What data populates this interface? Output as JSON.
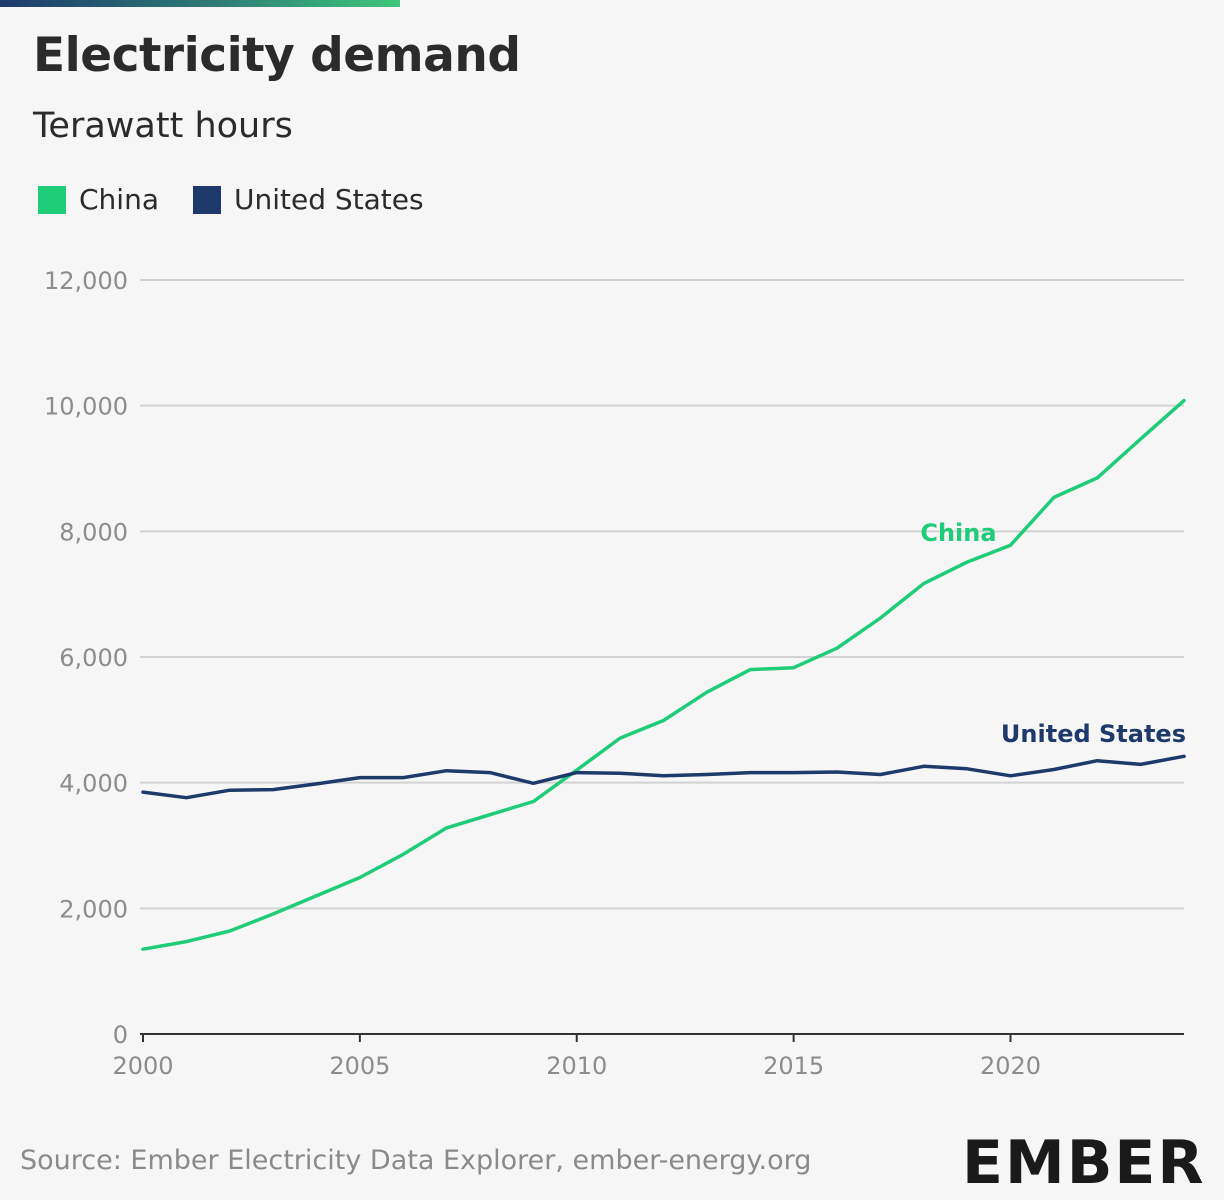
{
  "header": {
    "title": "Electricity demand",
    "subtitle": "Terawatt hours"
  },
  "legend": [
    {
      "label": "China",
      "color": "#1fcc78"
    },
    {
      "label": "United States",
      "color": "#1d3a6b"
    }
  ],
  "chart_data": {
    "type": "line",
    "title": "Electricity demand",
    "subtitle": "Terawatt hours",
    "xlabel": "",
    "ylabel": "Terawatt hours",
    "x": [
      2000,
      2001,
      2002,
      2003,
      2004,
      2005,
      2006,
      2007,
      2008,
      2009,
      2010,
      2011,
      2012,
      2013,
      2014,
      2015,
      2016,
      2017,
      2018,
      2019,
      2020,
      2021,
      2022,
      2023,
      2024
    ],
    "xlim": [
      2000,
      2024
    ],
    "ylim": [
      0,
      12000
    ],
    "x_ticks": [
      2000,
      2005,
      2010,
      2015,
      2020
    ],
    "y_ticks": [
      0,
      2000,
      4000,
      6000,
      8000,
      10000,
      12000
    ],
    "y_tick_labels": [
      "0",
      "2,000",
      "4,000",
      "6,000",
      "8,000",
      "10,000",
      "12,000"
    ],
    "grid": true,
    "legend_position": "top-left",
    "series": [
      {
        "name": "China",
        "color": "#1fcc78",
        "label": "China",
        "values": [
          1350,
          1470,
          1640,
          1910,
          2200,
          2490,
          2860,
          3280,
          3490,
          3700,
          4200,
          4710,
          4990,
          5440,
          5800,
          5830,
          6140,
          6620,
          7170,
          7510,
          7780,
          8540,
          8850,
          9470,
          10080
        ]
      },
      {
        "name": "United States",
        "color": "#1d3a6b",
        "label": "United States",
        "values": [
          3850,
          3760,
          3880,
          3890,
          3980,
          4080,
          4080,
          4190,
          4160,
          3990,
          4160,
          4150,
          4110,
          4130,
          4160,
          4160,
          4170,
          4130,
          4260,
          4220,
          4110,
          4210,
          4350,
          4290,
          4420
        ]
      }
    ]
  },
  "footer": {
    "source": "Source: Ember Electricity Data Explorer, ember-energy.org",
    "logo": "EMBER"
  }
}
